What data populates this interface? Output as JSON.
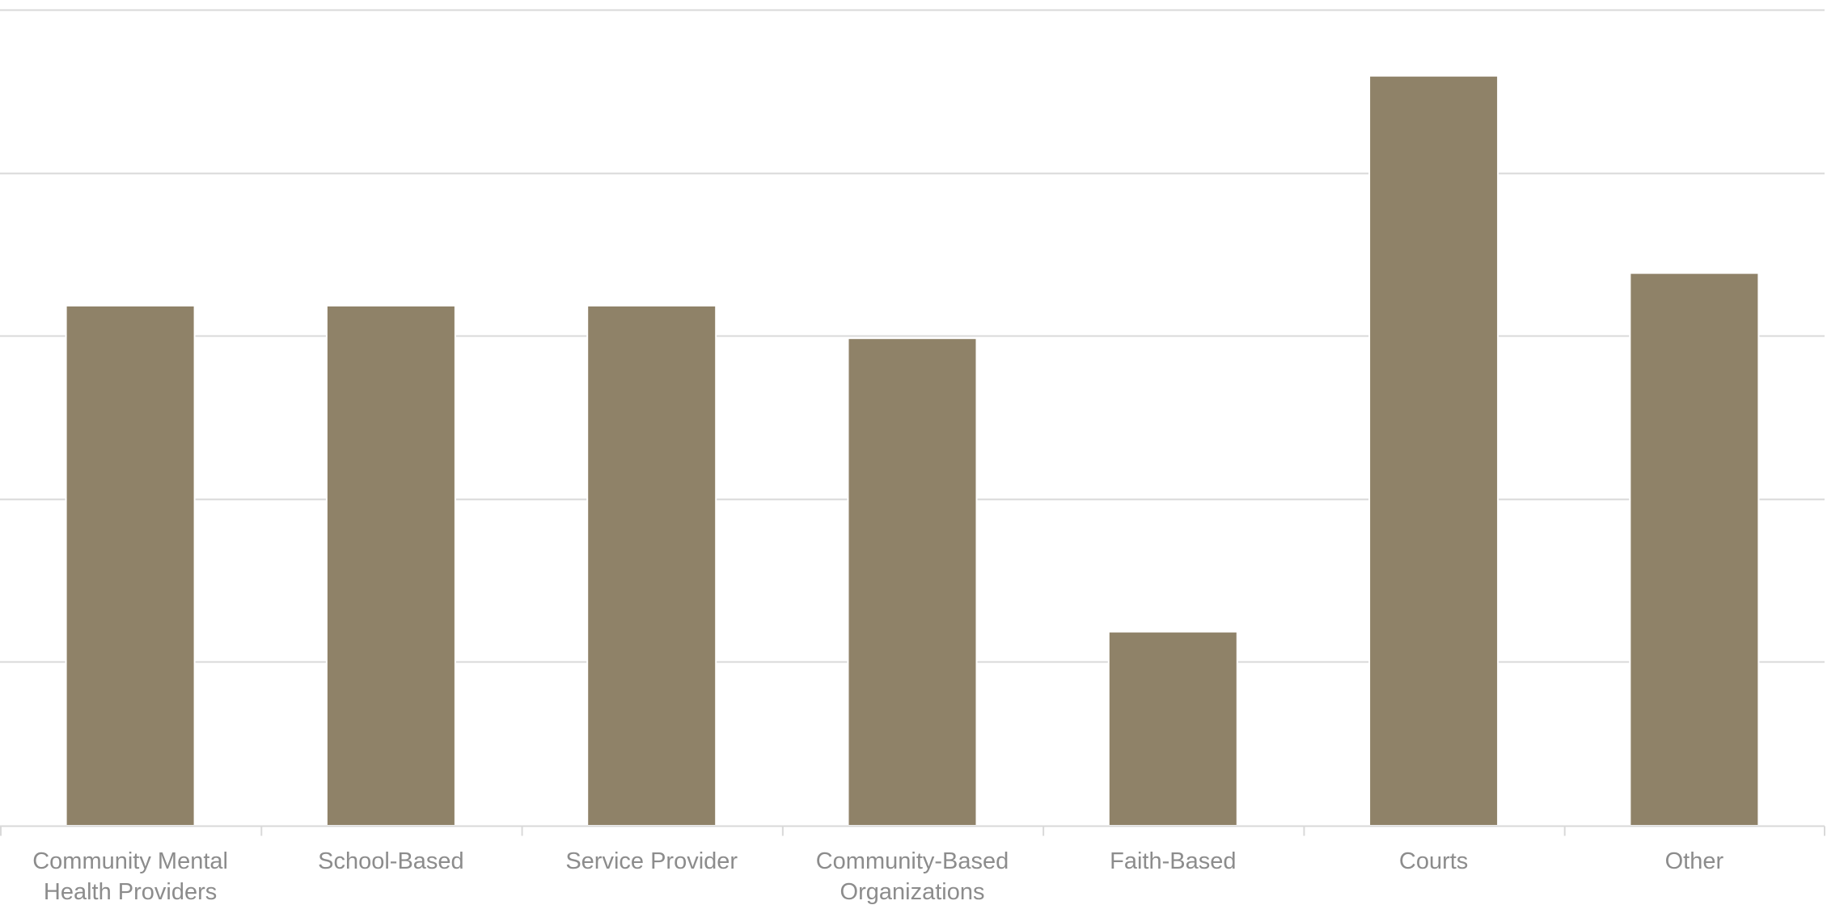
{
  "chart_data": {
    "type": "bar",
    "title": "",
    "xlabel": "",
    "ylabel": "",
    "categories": [
      "Community Mental Health Providers",
      "School-Based",
      "Service Provider",
      "Community-Based Organizations",
      "Faith-Based",
      "Courts",
      "Other"
    ],
    "category_lines": [
      [
        "Community Mental",
        "Health Providers"
      ],
      [
        "School-Based"
      ],
      [
        "Service Provider"
      ],
      [
        "Community-Based",
        "Organizations"
      ],
      [
        "Faith-Based"
      ],
      [
        "Courts"
      ],
      [
        "Other"
      ]
    ],
    "values": [
      3.18,
      3.18,
      3.18,
      2.98,
      1.18,
      4.59,
      3.38
    ],
    "ylim": [
      0,
      5
    ],
    "y_gridlines": [
      1,
      2,
      3,
      4,
      5
    ],
    "grid": true,
    "legend": "none",
    "colors": {
      "bar": "#8f8268",
      "grid": "#d9d9d9",
      "axis": "#d9d9d9",
      "label": "#8c8c8c"
    }
  }
}
